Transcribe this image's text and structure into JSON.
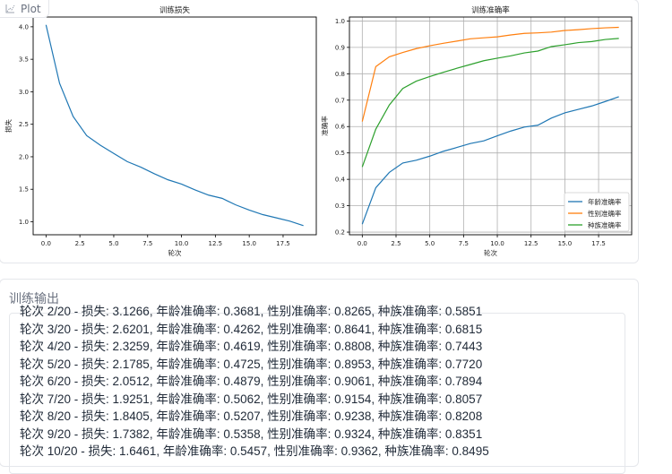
{
  "plot": {
    "label": "Plot",
    "icon": "chart-icon"
  },
  "output": {
    "label": "训练输出",
    "lines": [
      "轮次 2/20 - 损失: 3.1266, 年龄准确率: 0.3681, 性别准确率: 0.8265, 种族准确率: 0.5851",
      "轮次 3/20 - 损失: 2.6201, 年龄准确率: 0.4262, 性别准确率: 0.8641, 种族准确率: 0.6815",
      "轮次 4/20 - 损失: 2.3259, 年龄准确率: 0.4619, 性别准确率: 0.8808, 种族准确率: 0.7443",
      "轮次 5/20 - 损失: 2.1785, 年龄准确率: 0.4725, 性别准确率: 0.8953, 种族准确率: 0.7720",
      "轮次 6/20 - 损失: 2.0512, 年龄准确率: 0.4879, 性别准确率: 0.9061, 种族准确率: 0.7894",
      "轮次 7/20 - 损失: 1.9251, 年龄准确率: 0.5062, 性别准确率: 0.9154, 种族准确率: 0.8057",
      "轮次 8/20 - 损失: 1.8405, 年龄准确率: 0.5207, 性别准确率: 0.9238, 种族准确率: 0.8208",
      "轮次 9/20 - 损失: 1.7382, 年龄准确率: 0.5358, 性别准确率: 0.9324, 种族准确率: 0.8351",
      "轮次 10/20 - 损失: 1.6461, 年龄准确率: 0.5457, 性别准确率: 0.9362, 种族准确率: 0.8495"
    ]
  },
  "chart_data": [
    {
      "type": "line",
      "title": "训练损失",
      "xlabel": "轮次",
      "ylabel": "损失",
      "grid": false,
      "xlim": [
        -0.95,
        19.95
      ],
      "ylim": [
        0.8,
        4.15
      ],
      "xticks": [
        "0.0",
        "2.5",
        "5.0",
        "7.5",
        "10.0",
        "12.5",
        "15.0",
        "17.5"
      ],
      "yticks": [
        "1.0",
        "1.5",
        "2.0",
        "2.5",
        "3.0",
        "3.5",
        "4.0"
      ],
      "x": [
        0,
        1,
        2,
        3,
        4,
        5,
        6,
        7,
        8,
        9,
        10,
        11,
        12,
        13,
        14,
        15,
        16,
        17,
        18,
        19
      ],
      "series": [
        {
          "values": [
            4.03,
            3.13,
            2.6201,
            2.3259,
            2.1785,
            2.0512,
            1.9251,
            1.8405,
            1.7382,
            1.6461,
            1.58,
            1.49,
            1.41,
            1.36,
            1.26,
            1.18,
            1.11,
            1.06,
            1.01,
            0.94
          ],
          "color": "#1f77b4"
        }
      ]
    },
    {
      "type": "line",
      "title": "训练准确率",
      "xlabel": "轮次",
      "ylabel": "准确率",
      "grid": true,
      "legend": "lower-right",
      "xlim": [
        -0.95,
        19.95
      ],
      "ylim": [
        0.19,
        1.015
      ],
      "xticks": [
        "0.0",
        "2.5",
        "5.0",
        "7.5",
        "10.0",
        "12.5",
        "15.0",
        "17.5"
      ],
      "yticks": [
        "0.2",
        "0.3",
        "0.4",
        "0.5",
        "0.6",
        "0.7",
        "0.8",
        "0.9",
        "1.0"
      ],
      "x": [
        0,
        1,
        2,
        3,
        4,
        5,
        6,
        7,
        8,
        9,
        10,
        11,
        12,
        13,
        14,
        15,
        16,
        17,
        18,
        19
      ],
      "series": [
        {
          "name": "年龄准确率",
          "color": "#1f77b4",
          "values": [
            0.23,
            0.368,
            0.4262,
            0.4619,
            0.4725,
            0.4879,
            0.5062,
            0.5207,
            0.5358,
            0.5457,
            0.565,
            0.583,
            0.598,
            0.605,
            0.632,
            0.652,
            0.665,
            0.678,
            0.695,
            0.713
          ]
        },
        {
          "name": "性别准确率",
          "color": "#ff7f0e",
          "values": [
            0.619,
            0.827,
            0.8641,
            0.8808,
            0.8953,
            0.9061,
            0.9154,
            0.9238,
            0.9324,
            0.9362,
            0.94,
            0.947,
            0.953,
            0.955,
            0.958,
            0.964,
            0.967,
            0.971,
            0.974,
            0.976
          ]
        },
        {
          "name": "种族准确率",
          "color": "#2ca02c",
          "values": [
            0.447,
            0.59,
            0.6815,
            0.7443,
            0.772,
            0.7894,
            0.8057,
            0.8208,
            0.8351,
            0.8495,
            0.859,
            0.868,
            0.879,
            0.886,
            0.903,
            0.91,
            0.918,
            0.922,
            0.93,
            0.934
          ]
        }
      ]
    }
  ]
}
